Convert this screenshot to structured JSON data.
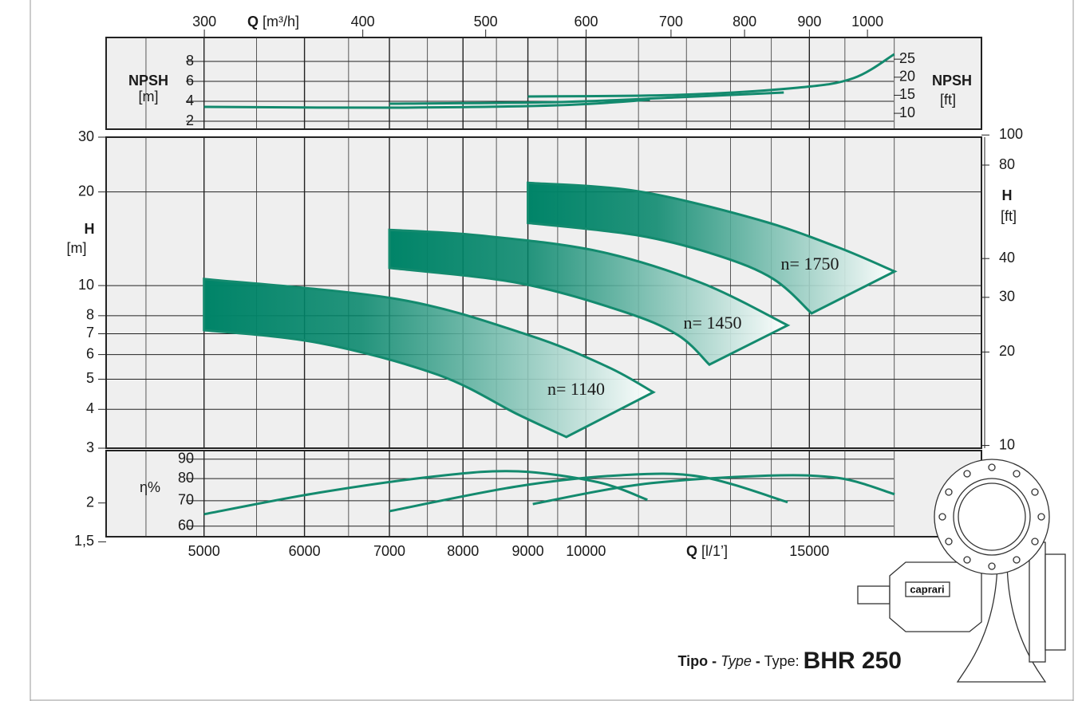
{
  "chart_data": [
    {
      "type": "line",
      "ylabel": "NPSH",
      "ylabel_unit": "[m]",
      "y2label": "NPSH",
      "y2label_unit": "[ft]",
      "x2label": "Q",
      "x2label_unit": "[m³/h]",
      "log_x": true,
      "xlim": [
        4186,
        20500
      ],
      "x2lim": [
        251,
        1230
      ],
      "x2ticks": [
        300,
        400,
        500,
        600,
        700,
        800,
        900,
        1000
      ],
      "ylim": [
        1.2,
        10.4
      ],
      "yticks": [
        2,
        4,
        6,
        8
      ],
      "y2lim": [
        5.6,
        31
      ],
      "y2ticks": [
        10,
        15,
        20,
        25
      ],
      "series": [
        {
          "color": "#138a6e",
          "x": [
            5000,
            7100,
            9500,
            11230
          ],
          "values": [
            3.44,
            3.36,
            3.6,
            4.16
          ]
        },
        {
          "color": "#138a6e",
          "x": [
            7000,
            9500,
            11810,
            14320
          ],
          "values": [
            3.76,
            3.92,
            4.4,
            4.88
          ]
        },
        {
          "color": "#138a6e",
          "x": [
            9000,
            11810,
            14680,
            16250,
            17500
          ],
          "values": [
            4.48,
            4.64,
            5.36,
            6.32,
            8.72
          ]
        }
      ]
    },
    {
      "type": "band",
      "ylabel": "H",
      "ylabel_unit": "[m]",
      "y2label": "H",
      "y2label_unit": "[ft]",
      "log_x": true,
      "xlim": [
        4186,
        20500
      ],
      "xgrid": [
        4500,
        5500,
        6500,
        7500,
        8500,
        9500,
        11000,
        12000,
        13000,
        14000,
        16000,
        17500
      ],
      "log_y": true,
      "ylim": [
        3,
        30
      ],
      "yticks": [
        3,
        4,
        5,
        6,
        7,
        8,
        10,
        20,
        30,
        2,
        {
          "value": 1.5,
          "label": "1,5"
        }
      ],
      "y2lim": [
        9.8,
        98.4
      ],
      "y2ticks": [
        10,
        20,
        30,
        40,
        80,
        100
      ],
      "series": [
        {
          "name": "n= 1140",
          "color": "#008468",
          "x": [
            5000,
            7100,
            9000,
            10400,
            11300
          ],
          "values": [
            10.5,
            9.05,
            6.94,
            5.48,
            4.54
          ],
          "x_low": [
            5000,
            6160,
            7650,
            8840,
            9650
          ],
          "values_low": [
            7.19,
            6.54,
            5.16,
            3.85,
            3.26
          ]
        },
        {
          "name": "n= 1450",
          "color": "#008468",
          "x": [
            7000,
            8230,
            10220,
            12330,
            14420
          ],
          "values": [
            15.1,
            14.5,
            12.9,
            10.2,
            7.45
          ],
          "x_low": [
            7000,
            8840,
            10670,
            11810,
            12510
          ],
          "values_low": [
            11.4,
            10.2,
            8.28,
            6.94,
            5.57
          ]
        },
        {
          "name": "n= 1750",
          "color": "#008468",
          "x": [
            9000,
            10990,
            13660,
            15780,
            17510
          ],
          "values": [
            21.4,
            20.1,
            16.3,
            13.3,
            11.1
          ],
          "x_low": [
            9000,
            10990,
            12700,
            14050,
            15060
          ],
          "values_low": [
            15.9,
            14.5,
            12.5,
            10.5,
            8.14
          ]
        }
      ]
    },
    {
      "type": "line",
      "ylabel": "η%",
      "xlabel": "Q",
      "xlabel_unit": "[l/1’]",
      "log_x": true,
      "xlim": [
        4186,
        20500
      ],
      "xticks": [
        5000,
        6000,
        7000,
        8000,
        9000,
        10000,
        15000
      ],
      "log_y": true,
      "ylim": [
        56.3,
        94.8
      ],
      "yticks": [
        60,
        70,
        80,
        90
      ],
      "series": [
        {
          "color": "#138a6e",
          "x": [
            5000,
            6160,
            7650,
            8840,
            10220,
            11180
          ],
          "values": [
            64.5,
            73.5,
            81.3,
            83.6,
            78.3,
            70.4
          ]
        },
        {
          "color": "#138a6e",
          "x": [
            7000,
            8840,
            10670,
            12330,
            14420
          ],
          "values": [
            65.7,
            76.4,
            81.7,
            80.9,
            69.4
          ]
        },
        {
          "color": "#138a6e",
          "x": [
            9080,
            10990,
            13660,
            15780,
            17510
          ],
          "values": [
            68.6,
            77.1,
            81.3,
            80.4,
            72.8
          ]
        }
      ]
    }
  ],
  "caption": {
    "tipo": "Tipo -",
    "type_it": "Type",
    "dash": "-",
    "type_en": "Type:",
    "model": "BHR 250"
  },
  "logo": "caprari"
}
